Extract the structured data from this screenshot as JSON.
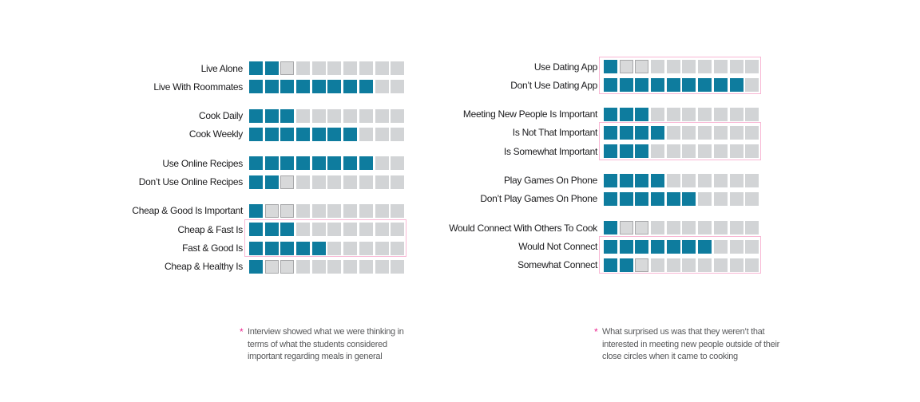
{
  "palette": {
    "filled_square": "#0e7c9e",
    "empty_square": "#d2d4d6",
    "outlined_square_fill": "#d8d9da",
    "outlined_square_border": "#a6a7a9",
    "highlight_box_border": "#f8b7d4",
    "footnote_marker": "#ec268f",
    "footnote_text": "#58595b",
    "label_text": "#1b1b1d"
  },
  "chart_data": {
    "type": "bar",
    "variant": "unit-squares",
    "units_per_row": 10,
    "note": "filled = teal squares counted from left; outlined = gray squares drawn with a darker border immediately after the filled ones; boxed = row enclosed by pink highlight rectangle",
    "panels": [
      {
        "id": "left",
        "groups": [
          {
            "rows": [
              {
                "label": "Live Alone",
                "filled": 2,
                "outlined": 1,
                "boxed": false
              },
              {
                "label": "Live With Roommates",
                "filled": 8,
                "outlined": 0,
                "boxed": false
              }
            ]
          },
          {
            "rows": [
              {
                "label": "Cook Daily",
                "filled": 3,
                "outlined": 0,
                "boxed": false
              },
              {
                "label": "Cook Weekly",
                "filled": 7,
                "outlined": 0,
                "boxed": false
              }
            ]
          },
          {
            "rows": [
              {
                "label": "Use Online Recipes",
                "filled": 8,
                "outlined": 0,
                "boxed": false
              },
              {
                "label": "Don’t Use Online Recipes",
                "filled": 2,
                "outlined": 1,
                "boxed": false
              }
            ]
          },
          {
            "rows": [
              {
                "label": "Cheap & Good Is Important",
                "filled": 1,
                "outlined": 2,
                "boxed": false
              },
              {
                "label": "Cheap & Fast Is",
                "filled": 3,
                "outlined": 0,
                "boxed": true
              },
              {
                "label": "Fast & Good Is",
                "filled": 5,
                "outlined": 0,
                "boxed": true
              },
              {
                "label": "Cheap & Healthy Is",
                "filled": 1,
                "outlined": 2,
                "boxed": false
              }
            ]
          }
        ]
      },
      {
        "id": "right",
        "groups": [
          {
            "rows": [
              {
                "label": "Use Dating App",
                "filled": 1,
                "outlined": 2,
                "boxed": true
              },
              {
                "label": "Don’t Use Dating App",
                "filled": 9,
                "outlined": 0,
                "boxed": true
              }
            ]
          },
          {
            "rows": [
              {
                "label": "Meeting New People Is Important",
                "filled": 3,
                "outlined": 0,
                "boxed": false
              },
              {
                "label": "Is Not That Important",
                "filled": 4,
                "outlined": 0,
                "boxed": true
              },
              {
                "label": "Is Somewhat Important",
                "filled": 3,
                "outlined": 0,
                "boxed": true
              }
            ]
          },
          {
            "rows": [
              {
                "label": "Play Games On Phone",
                "filled": 4,
                "outlined": 0,
                "boxed": false
              },
              {
                "label": "Don’t Play Games On Phone",
                "filled": 6,
                "outlined": 0,
                "boxed": false
              }
            ]
          },
          {
            "rows": [
              {
                "label": "Would Connect With Others To Cook",
                "filled": 1,
                "outlined": 2,
                "boxed": false
              },
              {
                "label": "Would Not Connect",
                "filled": 7,
                "outlined": 0,
                "boxed": true
              },
              {
                "label": "Somewhat Connect",
                "filled": 2,
                "outlined": 1,
                "boxed": true
              }
            ]
          }
        ]
      }
    ]
  },
  "footnotes": {
    "left": {
      "marker": "*",
      "text": "Interview showed what we were thinking in terms of what the students considered important regarding meals in general"
    },
    "right": {
      "marker": "*",
      "text": "What surprised us was that they weren’t that interested in meeting new people outside of their close circles when it came to cooking"
    }
  }
}
